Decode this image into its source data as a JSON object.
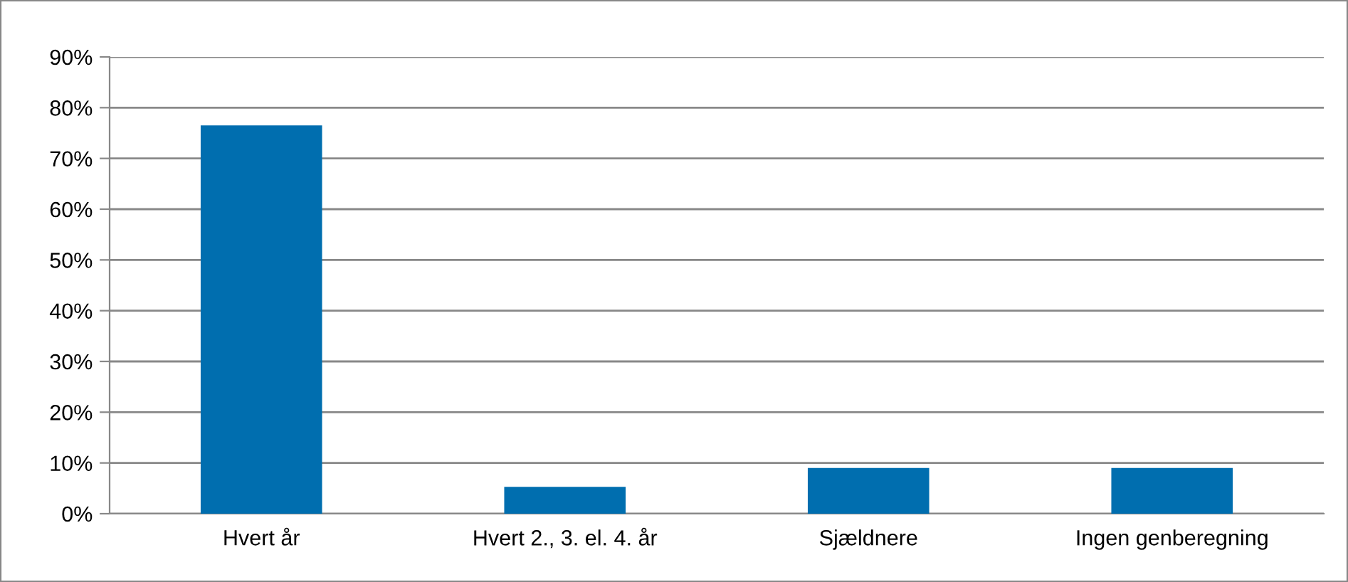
{
  "chart_data": {
    "type": "bar",
    "categories": [
      "Hvert år",
      "Hvert 2., 3. el. 4. år",
      "Sjældnere",
      "Ingen genberegning"
    ],
    "values": [
      76.5,
      5.3,
      9.0,
      9.0
    ],
    "color": "#006eaf",
    "ylim": [
      0,
      90
    ],
    "yticks": [
      {
        "value": 0,
        "label": "0%"
      },
      {
        "value": 10,
        "label": "10%"
      },
      {
        "value": 20,
        "label": "20%"
      },
      {
        "value": 30,
        "label": "30%"
      },
      {
        "value": 40,
        "label": "40%"
      },
      {
        "value": 50,
        "label": "50%"
      },
      {
        "value": 60,
        "label": "60%"
      },
      {
        "value": 70,
        "label": "70%"
      },
      {
        "value": 80,
        "label": "80%"
      },
      {
        "value": 90,
        "label": "90%"
      }
    ],
    "grid": "y",
    "legend": false
  }
}
